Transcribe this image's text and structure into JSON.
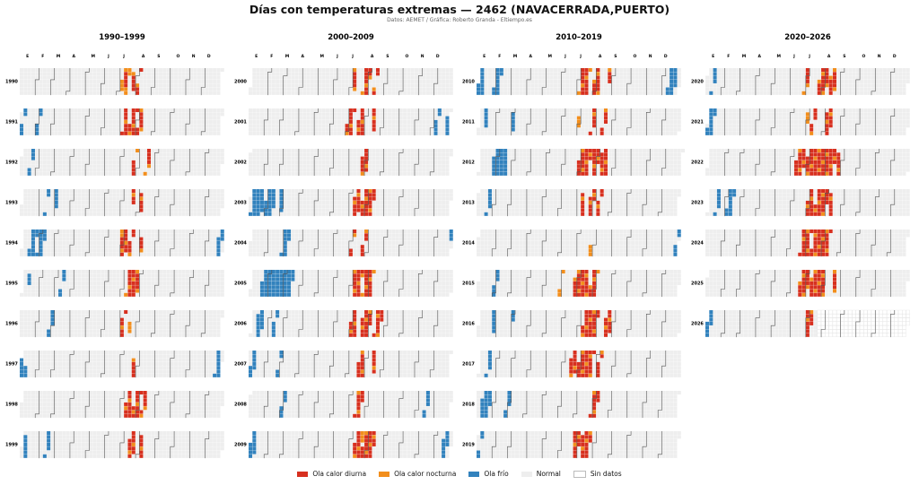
{
  "title": "Días con temperaturas extremas — 2462 (NAVACERRADA,PUERTO)",
  "subtitle": "Datos: AEMET / Gráfica: Roberto Granda - Eltiempo.es",
  "colors": {
    "day_heat": "#d7301f",
    "night_heat": "#f28e1c",
    "cold": "#3282bd",
    "normal": "#eeeeee",
    "nodata": "#ffffff",
    "month_line": "#555555",
    "grid": "#ffffff"
  },
  "legend": [
    {
      "key": "day_heat",
      "label": "Ola calor diurna"
    },
    {
      "key": "night_heat",
      "label": "Ola calor nocturna"
    },
    {
      "key": "cold",
      "label": "Ola frío"
    },
    {
      "key": "normal",
      "label": "Normal"
    },
    {
      "key": "nodata",
      "label": "Sin datos"
    }
  ],
  "chart_data": {
    "type": "heatmap",
    "description_units": "per-year weekly calendar grid; cells = days; events given as [day_of_year_start, day_of_year_end]",
    "month_labels": [
      "E",
      "F",
      "M",
      "A",
      "M",
      "J",
      "J",
      "A",
      "S",
      "O",
      "N",
      "D"
    ],
    "panels": [
      {
        "title": "1990–1999",
        "years": [
          1990,
          1991,
          1992,
          1993,
          1994,
          1995,
          1996,
          1997,
          1998,
          1999
        ]
      },
      {
        "title": "2000–2009",
        "years": [
          2000,
          2001,
          2002,
          2003,
          2004,
          2005,
          2006,
          2007,
          2008,
          2009
        ]
      },
      {
        "title": "2010–2019",
        "years": [
          2010,
          2011,
          2012,
          2013,
          2014,
          2015,
          2016,
          2017,
          2018,
          2019
        ]
      },
      {
        "title": "2020–2026",
        "years": [
          2020,
          2021,
          2022,
          2023,
          2024,
          2025,
          2026
        ]
      }
    ],
    "last_data_year": 2026,
    "last_data_day": 200,
    "events": {
      "1990": {
        "day_heat": [
          [
            190,
            195
          ],
          [
            205,
            209
          ],
          [
            215,
            218
          ]
        ],
        "night_heat": [
          [
            186,
            188
          ],
          [
            196,
            198
          ]
        ],
        "cold": []
      },
      "1991": {
        "day_heat": [
          [
            188,
            195
          ],
          [
            200,
            210
          ],
          [
            215,
            222
          ]
        ],
        "night_heat": [
          [
            190,
            192
          ],
          [
            204,
            206
          ]
        ],
        "cold": [
          [
            4,
            8
          ],
          [
            32,
            36
          ]
        ]
      },
      "1992": {
        "day_heat": [
          [
            205,
            209
          ],
          [
            230,
            234
          ]
        ],
        "night_heat": [
          [
            206,
            207
          ],
          [
            229,
            230
          ]
        ],
        "cold": [
          [
            18,
            22
          ]
        ]
      },
      "1993": {
        "day_heat": [
          [
            200,
            203
          ],
          [
            215,
            219
          ]
        ],
        "night_heat": [],
        "cold": [
          [
            60,
            64
          ],
          [
            45,
            47
          ]
        ]
      },
      "1994": {
        "day_heat": [
          [
            180,
            190
          ],
          [
            195,
            200
          ],
          [
            215,
            218
          ]
        ],
        "night_heat": [
          [
            178,
            182
          ]
        ],
        "cold": [
          [
            15,
            25
          ],
          [
            30,
            40
          ],
          [
            355,
            362
          ]
        ]
      },
      "1995": {
        "day_heat": [
          [
            190,
            210
          ]
        ],
        "night_heat": [
          [
            192,
            194
          ],
          [
            205,
            207
          ]
        ],
        "cold": [
          [
            10,
            12
          ],
          [
            70,
            74
          ]
        ]
      },
      "1996": {
        "day_heat": [
          [
            185,
            190
          ]
        ],
        "night_heat": [
          [
            200,
            202
          ]
        ],
        "cold": [
          [
            55,
            60
          ]
        ]
      },
      "1997": {
        "day_heat": [
          [
            205,
            208
          ]
        ],
        "night_heat": [
          [
            204,
            205
          ]
        ],
        "cold": [
          [
            1,
            5
          ],
          [
            355,
            362
          ],
          [
            10,
            12
          ]
        ]
      },
      "1998": {
        "day_heat": [
          [
            190,
            200
          ],
          [
            205,
            215
          ],
          [
            220,
            226
          ]
        ],
        "night_heat": [
          [
            192,
            194
          ],
          [
            208,
            210
          ]
        ],
        "cold": []
      },
      "1999": {
        "day_heat": [
          [
            195,
            205
          ],
          [
            215,
            220
          ]
        ],
        "night_heat": [
          [
            200,
            203
          ]
        ],
        "cold": [
          [
            5,
            10
          ],
          [
            45,
            50
          ]
        ]
      },
      "2000": {
        "day_heat": [
          [
            185,
            190
          ],
          [
            205,
            215
          ],
          [
            225,
            228
          ]
        ],
        "night_heat": [
          [
            207,
            210
          ]
        ],
        "cold": []
      },
      "2001": {
        "day_heat": [
          [
            180,
            190
          ],
          [
            200,
            210
          ],
          [
            225,
            230
          ]
        ],
        "night_heat": [
          [
            182,
            186
          ]
        ],
        "cold": [
          [
            340,
            345
          ],
          [
            360,
            364
          ]
        ]
      },
      "2002": {
        "day_heat": [
          [
            205,
            215
          ]
        ],
        "night_heat": [
          [
            206,
            207
          ]
        ],
        "cold": []
      },
      "2003": {
        "day_heat": [
          [
            190,
            200
          ],
          [
            205,
            225
          ]
        ],
        "night_heat": [
          [
            207,
            212
          ],
          [
            218,
            220
          ]
        ],
        "cold": [
          [
            5,
            25
          ],
          [
            30,
            45
          ],
          [
            55,
            60
          ]
        ]
      },
      "2004": {
        "day_heat": [
          [
            185,
            188
          ],
          [
            205,
            210
          ]
        ],
        "night_heat": [
          [
            186,
            187
          ]
        ],
        "cold": [
          [
            60,
            70
          ],
          [
            362,
            364
          ]
        ]
      },
      "2005": {
        "day_heat": [
          [
            185,
            200
          ],
          [
            205,
            220
          ]
        ],
        "night_heat": [
          [
            188,
            190
          ],
          [
            212,
            214
          ]
        ],
        "cold": [
          [
            20,
            75
          ]
        ]
      },
      "2006": {
        "day_heat": [
          [
            180,
            190
          ],
          [
            200,
            215
          ],
          [
            225,
            235
          ]
        ],
        "night_heat": [
          [
            182,
            184
          ]
        ],
        "cold": [
          [
            10,
            20
          ],
          [
            40,
            45
          ]
        ]
      },
      "2007": {
        "day_heat": [
          [
            200,
            210
          ],
          [
            225,
            230
          ]
        ],
        "night_heat": [
          [
            226,
            228
          ]
        ],
        "cold": [
          [
            5,
            12
          ],
          [
            55,
            58
          ]
        ]
      },
      "2008": {
        "day_heat": [
          [
            195,
            205
          ]
        ],
        "night_heat": [],
        "cold": [
          [
            60,
            65
          ],
          [
            320,
            325
          ]
        ]
      },
      "2009": {
        "day_heat": [
          [
            190,
            200
          ],
          [
            205,
            225
          ]
        ],
        "night_heat": [
          [
            200,
            203
          ]
        ],
        "cold": [
          [
            1,
            10
          ],
          [
            350,
            358
          ]
        ]
      },
      "2010": {
        "day_heat": [
          [
            185,
            200
          ],
          [
            210,
            220
          ],
          [
            235,
            238
          ]
        ],
        "night_heat": [
          [
            190,
            192
          ]
        ],
        "cold": [
          [
            1,
            10
          ],
          [
            30,
            40
          ],
          [
            345,
            358
          ]
        ]
      },
      "2011": {
        "day_heat": [
          [
            205,
            210
          ],
          [
            225,
            230
          ]
        ],
        "night_heat": [
          [
            180,
            182
          ]
        ],
        "cold": [
          [
            10,
            14
          ],
          [
            60,
            64
          ]
        ]
      },
      "2012": {
        "day_heat": [
          [
            180,
            200
          ],
          [
            205,
            215
          ],
          [
            220,
            232
          ]
        ],
        "night_heat": [
          [
            188,
            190
          ],
          [
            226,
            228
          ]
        ],
        "cold": [
          [
            25,
            50
          ]
        ]
      },
      "2013": {
        "day_heat": [
          [
            190,
            195
          ],
          [
            205,
            212
          ],
          [
            220,
            225
          ]
        ],
        "night_heat": [],
        "cold": [
          [
            20,
            25
          ]
        ]
      },
      "2014": {
        "day_heat": [],
        "night_heat": [
          [
            206,
            208
          ]
        ],
        "cold": [
          [
            360,
            364
          ]
        ]
      },
      "2015": {
        "day_heat": [
          [
            175,
            200
          ],
          [
            205,
            215
          ]
        ],
        "night_heat": [
          [
            176,
            178
          ],
          [
            150,
            152
          ]
        ],
        "cold": [
          [
            30,
            35
          ]
        ]
      },
      "2016": {
        "day_heat": [
          [
            190,
            215
          ],
          [
            230,
            240
          ]
        ],
        "night_heat": [
          [
            195,
            197
          ]
        ],
        "cold": [
          [
            25,
            30
          ],
          [
            60,
            62
          ]
        ]
      },
      "2017": {
        "day_heat": [
          [
            165,
            175
          ],
          [
            180,
            205
          ],
          [
            215,
            220
          ]
        ],
        "night_heat": [
          [
            170,
            172
          ]
        ],
        "cold": [
          [
            15,
            20
          ]
        ]
      },
      "2018": {
        "day_heat": [
          [
            210,
            220
          ]
        ],
        "night_heat": [
          [
            212,
            214
          ]
        ],
        "cold": [
          [
            10,
            25
          ],
          [
            55,
            60
          ]
        ]
      },
      "2019": {
        "day_heat": [
          [
            175,
            185
          ],
          [
            190,
            205
          ]
        ],
        "night_heat": [
          [
            178,
            180
          ]
        ],
        "cold": [
          [
            5,
            8
          ]
        ]
      },
      "2020": {
        "day_heat": [
          [
            180,
            185
          ],
          [
            205,
            220
          ],
          [
            225,
            235
          ]
        ],
        "night_heat": [
          [
            182,
            184
          ],
          [
            207,
            209
          ]
        ],
        "cold": [
          [
            12,
            16
          ]
        ]
      },
      "2021": {
        "day_heat": [
          [
            190,
            195
          ],
          [
            215,
            225
          ]
        ],
        "night_heat": [
          [
            180,
            182
          ],
          [
            216,
            218
          ]
        ],
        "cold": [
          [
            2,
            12
          ]
        ]
      },
      "2022": {
        "day_heat": [
          [
            160,
            175
          ],
          [
            180,
            230
          ],
          [
            235,
            240
          ]
        ],
        "night_heat": [
          [
            195,
            200
          ],
          [
            215,
            218
          ]
        ],
        "cold": []
      },
      "2023": {
        "day_heat": [
          [
            180,
            190
          ],
          [
            195,
            215
          ],
          [
            220,
            225
          ]
        ],
        "night_heat": [
          [
            182,
            184
          ],
          [
            205,
            207
          ]
        ],
        "cold": [
          [
            15,
            20
          ],
          [
            35,
            45
          ]
        ]
      },
      "2024": {
        "day_heat": [
          [
            175,
            190
          ],
          [
            195,
            225
          ]
        ],
        "night_heat": [
          [
            200,
            205
          ]
        ],
        "cold": []
      },
      "2025": {
        "day_heat": [
          [
            170,
            185
          ],
          [
            190,
            215
          ],
          [
            230,
            235
          ]
        ],
        "night_heat": [
          [
            192,
            195
          ],
          [
            212,
            214
          ]
        ],
        "cold": []
      },
      "2026": {
        "day_heat": [
          [
            180,
            190
          ]
        ],
        "night_heat": [
          [
            183,
            185
          ]
        ],
        "cold": [
          [
            1,
            8
          ]
        ]
      }
    }
  }
}
